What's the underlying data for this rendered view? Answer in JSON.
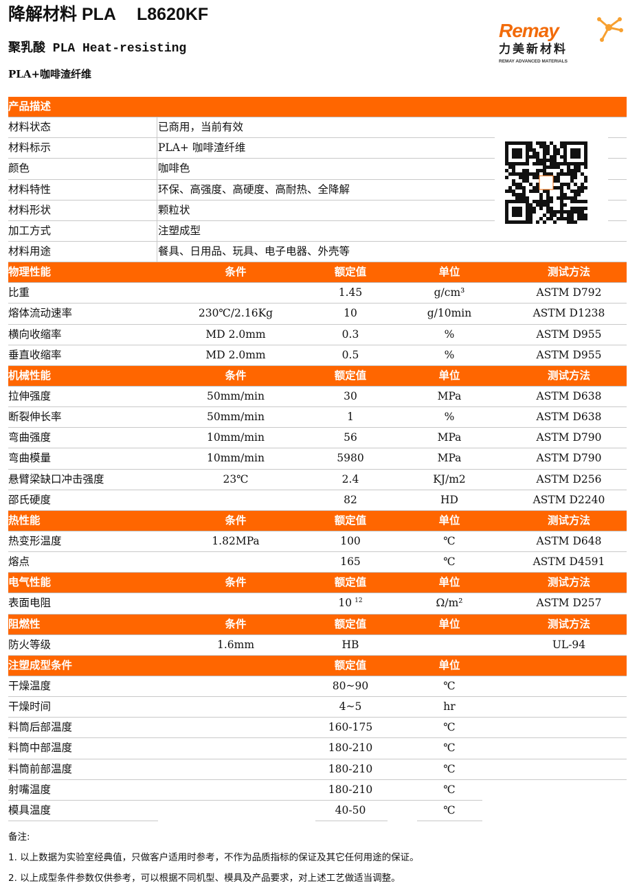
{
  "header": {
    "title": "降解材料 PLA",
    "code": "L8620KF",
    "subtitle": "聚乳酸 PLA Heat-resisting",
    "subtitle2": "PLA+咖啡渣纤维"
  },
  "logo": {
    "brand": "Remay",
    "cn": "力美新材料",
    "en": "REMAY ADVANCED MATERIALS",
    "color": "#f26b0a"
  },
  "colors": {
    "section_bg": "#ff6600"
  },
  "sections": [
    {
      "type": "desc",
      "title": "产品描述",
      "rows": [
        [
          "材料状态",
          "已商用，当前有效"
        ],
        [
          "材料标示",
          "PLA+ 咖啡渣纤维"
        ],
        [
          "颜色",
          "咖啡色"
        ],
        [
          "材料特性",
          "环保、高强度、高硬度、高耐热、全降解"
        ],
        [
          "材料形状",
          "颗粒状"
        ],
        [
          "加工方式",
          "注塑成型"
        ],
        [
          "材料用途",
          "餐具、日用品、玩具、电子电器、外壳等"
        ]
      ]
    },
    {
      "type": "prop",
      "title": "物理性能",
      "cols": [
        "条件",
        "额定值",
        "单位",
        "测试方法"
      ],
      "rows": [
        [
          "比重",
          "",
          "1.45",
          "g/cm³",
          "ASTM D792"
        ],
        [
          "熔体流动速率",
          "230℃/2.16Kg",
          "10",
          "g/10min",
          "ASTM D1238"
        ],
        [
          "横向收缩率",
          "MD 2.0mm",
          "0.3",
          "%",
          "ASTM D955"
        ],
        [
          "垂直收缩率",
          "MD 2.0mm",
          "0.5",
          "%",
          "ASTM D955"
        ]
      ]
    },
    {
      "type": "prop",
      "title": "机械性能",
      "cols": [
        "条件",
        "额定值",
        "单位",
        "测试方法"
      ],
      "rows": [
        [
          "拉伸强度",
          "50mm/min",
          "30",
          "MPa",
          "ASTM D638"
        ],
        [
          "断裂伸长率",
          "50mm/min",
          "1",
          "%",
          "ASTM D638"
        ],
        [
          "弯曲强度",
          "10mm/min",
          "56",
          "MPa",
          "ASTM D790"
        ],
        [
          "弯曲模量",
          "10mm/min",
          "5980",
          "MPa",
          "ASTM D790"
        ],
        [
          "悬臂梁缺口冲击强度",
          "23℃",
          "2.4",
          "KJ/m2",
          "ASTM D256"
        ],
        [
          "邵氏硬度",
          "",
          "82",
          "HD",
          "ASTM D2240"
        ]
      ]
    },
    {
      "type": "prop",
      "title": "热性能",
      "cols": [
        "条件",
        "额定值",
        "单位",
        "测试方法"
      ],
      "rows": [
        [
          "热变形温度",
          "1.82MPa",
          "100",
          "℃",
          "ASTM D648"
        ],
        [
          "熔点",
          "",
          "165",
          "℃",
          "ASTM D4591"
        ]
      ]
    },
    {
      "type": "prop",
      "title": "电气性能",
      "cols": [
        "条件",
        "额定值",
        "单位",
        "测试方法"
      ],
      "rows": [
        [
          "表面电阻",
          "",
          "10",
          "Ω/m²",
          "ASTM D257",
          "12"
        ]
      ]
    },
    {
      "type": "prop",
      "title": "阻燃性",
      "cols": [
        "条件",
        "额定值",
        "单位",
        "测试方法"
      ],
      "rows": [
        [
          "防火等级",
          "1.6mm",
          "HB",
          "",
          "UL-94"
        ]
      ]
    },
    {
      "type": "prop",
      "title": "注塑成型条件",
      "cols": [
        "",
        "额定值",
        "单位",
        ""
      ],
      "rows": [
        [
          "干燥温度",
          "",
          "80~90",
          "℃",
          ""
        ],
        [
          "干燥时间",
          "",
          "4~5",
          "hr",
          ""
        ],
        [
          "料筒后部温度",
          "",
          "160-175",
          "℃",
          ""
        ],
        [
          "料筒中部温度",
          "",
          "180-210",
          "℃",
          ""
        ],
        [
          "料筒前部温度",
          "",
          "180-210",
          "℃",
          ""
        ],
        [
          "射嘴温度",
          "",
          "180-210",
          "℃",
          ""
        ],
        [
          "模具温度",
          "",
          "40-50",
          "℃",
          ""
        ]
      ]
    }
  ],
  "notes": {
    "title": "备注:",
    "items": [
      "1. 以上数据为实验室经典值，只做客户适用时参考，不作为品质指标的保证及其它任何用途的保证。",
      "2. 以上成型条件参数仅供参考，可以根据不同机型、模具及产品要求，对上述工艺做适当调整。"
    ]
  }
}
